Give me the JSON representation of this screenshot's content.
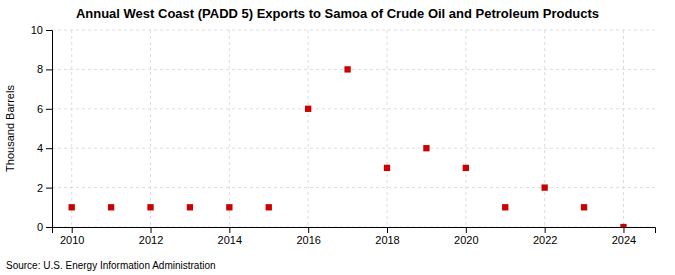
{
  "chart_data": {
    "type": "scatter",
    "title": "Annual West Coast (PADD 5) Exports to Samoa of Crude Oil and Petroleum Products",
    "ylabel": "Thousand Barrels",
    "source": "Source: U.S. Energy Information Administration",
    "x": [
      2010,
      2011,
      2012,
      2013,
      2014,
      2015,
      2016,
      2017,
      2018,
      2019,
      2020,
      2021,
      2022,
      2023,
      2024
    ],
    "values": [
      1,
      1,
      1,
      1,
      1,
      1,
      6,
      8,
      3,
      4,
      3,
      1,
      2,
      1,
      0
    ],
    "color": "#cc0000",
    "marker": "square",
    "xlim": [
      2009.5,
      2024.8
    ],
    "xticks": [
      2010,
      2012,
      2014,
      2016,
      2018,
      2020,
      2022,
      2024
    ],
    "ylim": [
      0,
      10
    ],
    "yticks": [
      0,
      2,
      4,
      6,
      8,
      10
    ],
    "grid": true
  }
}
